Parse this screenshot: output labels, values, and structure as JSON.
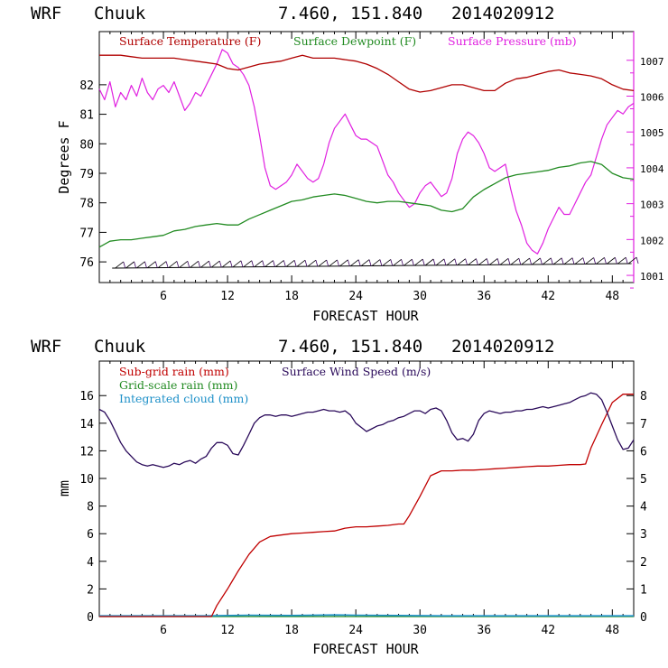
{
  "colors": {
    "temperature": "#b00000",
    "dewpoint": "#228b22",
    "pressure": "#e020e0",
    "subgrid_rain": "#c00000",
    "gridscale_rain": "#228b22",
    "cloud": "#1e90c8",
    "wind": "#2a0a5a",
    "pressure_axis": "#e020e0"
  },
  "chart_data": [
    {
      "type": "line",
      "header": {
        "model": "WRF",
        "station": "Chuuk",
        "coords": "7.460, 151.840",
        "init": "2014020912"
      },
      "xlabel": "FORECAST HOUR",
      "ylabel": "Degrees F",
      "xlim": [
        0,
        50
      ],
      "xticks": [
        "6",
        "12",
        "18",
        "24",
        "30",
        "36",
        "42",
        "48"
      ],
      "ylim": [
        75.3,
        83.8
      ],
      "yticks": [
        "76",
        "77",
        "78",
        "79",
        "80",
        "81",
        "82"
      ],
      "y2lim": [
        1000.8,
        1007.8
      ],
      "y2ticks": [
        "1001",
        "1002",
        "1003",
        "1004",
        "1005",
        "1006",
        "1007"
      ],
      "series": [
        {
          "name": "Surface Temperature (F)",
          "axis": "left",
          "x": [
            0,
            1,
            2,
            3,
            4,
            5,
            6,
            7,
            8,
            9,
            10,
            11,
            12,
            13,
            14,
            15,
            16,
            17,
            18,
            19,
            20,
            21,
            22,
            23,
            24,
            25,
            26,
            27,
            28,
            29,
            30,
            31,
            32,
            33,
            34,
            35,
            36,
            37,
            38,
            39,
            40,
            41,
            42,
            43,
            44,
            45,
            46,
            47,
            48,
            49,
            50
          ],
          "values": [
            83.0,
            83.0,
            83.0,
            82.95,
            82.9,
            82.9,
            82.9,
            82.9,
            82.85,
            82.8,
            82.75,
            82.7,
            82.55,
            82.5,
            82.6,
            82.7,
            82.75,
            82.8,
            82.9,
            83.0,
            82.9,
            82.9,
            82.9,
            82.85,
            82.8,
            82.7,
            82.55,
            82.35,
            82.1,
            81.85,
            81.75,
            81.8,
            81.9,
            82.0,
            82.0,
            81.9,
            81.8,
            81.8,
            82.05,
            82.2,
            82.25,
            82.35,
            82.45,
            82.5,
            82.4,
            82.35,
            82.3,
            82.2,
            82.0,
            81.85,
            81.8
          ]
        },
        {
          "name": "Surface Dewpoint (F)",
          "axis": "left",
          "x": [
            0,
            1,
            2,
            3,
            4,
            5,
            6,
            7,
            8,
            9,
            10,
            11,
            12,
            13,
            14,
            15,
            16,
            17,
            18,
            19,
            20,
            21,
            22,
            23,
            24,
            25,
            26,
            27,
            28,
            29,
            30,
            31,
            32,
            33,
            34,
            35,
            36,
            37,
            38,
            39,
            40,
            41,
            42,
            43,
            44,
            45,
            46,
            47,
            48,
            49,
            50
          ],
          "values": [
            76.5,
            76.7,
            76.75,
            76.75,
            76.8,
            76.85,
            76.9,
            77.05,
            77.1,
            77.2,
            77.25,
            77.3,
            77.25,
            77.25,
            77.45,
            77.6,
            77.75,
            77.9,
            78.05,
            78.1,
            78.2,
            78.25,
            78.3,
            78.25,
            78.15,
            78.05,
            78.0,
            78.05,
            78.05,
            78.0,
            77.95,
            77.9,
            77.75,
            77.7,
            77.8,
            78.2,
            78.45,
            78.65,
            78.85,
            78.95,
            79.0,
            79.05,
            79.1,
            79.2,
            79.25,
            79.35,
            79.4,
            79.3,
            79.0,
            78.85,
            78.8
          ]
        },
        {
          "name": "Surface Pressure (mb)",
          "axis": "right",
          "x": [
            0,
            0.5,
            1,
            1.5,
            2,
            2.5,
            3,
            3.5,
            4,
            4.5,
            5,
            5.5,
            6,
            6.5,
            7,
            7.5,
            8,
            8.5,
            9,
            9.5,
            10,
            10.5,
            11,
            11.5,
            12,
            12.5,
            13,
            13.5,
            14,
            14.5,
            15,
            15.5,
            16,
            16.5,
            17,
            17.5,
            18,
            18.5,
            19,
            19.5,
            20,
            20.5,
            21,
            21.5,
            22,
            22.5,
            23,
            23.5,
            24,
            24.5,
            25,
            25.5,
            26,
            26.5,
            27,
            27.5,
            28,
            28.5,
            29,
            29.5,
            30,
            30.5,
            31,
            31.5,
            32,
            32.5,
            33,
            33.5,
            34,
            34.5,
            35,
            35.5,
            36,
            36.5,
            37,
            37.5,
            38,
            38.5,
            39,
            39.5,
            40,
            40.5,
            41,
            41.5,
            42,
            42.5,
            43,
            43.5,
            44,
            44.5,
            45,
            45.5,
            46,
            46.5,
            47,
            47.5,
            48,
            48.5,
            49,
            49.5,
            50
          ],
          "values": [
            1006.2,
            1005.9,
            1006.4,
            1005.7,
            1006.1,
            1005.9,
            1006.3,
            1006.0,
            1006.5,
            1006.1,
            1005.9,
            1006.2,
            1006.3,
            1006.1,
            1006.4,
            1006.0,
            1005.6,
            1005.8,
            1006.1,
            1006.0,
            1006.3,
            1006.6,
            1006.9,
            1007.3,
            1007.2,
            1006.9,
            1006.8,
            1006.6,
            1006.3,
            1005.7,
            1004.9,
            1004.0,
            1003.5,
            1003.4,
            1003.5,
            1003.6,
            1003.8,
            1004.1,
            1003.9,
            1003.7,
            1003.6,
            1003.7,
            1004.1,
            1004.7,
            1005.1,
            1005.3,
            1005.5,
            1005.2,
            1004.9,
            1004.8,
            1004.8,
            1004.7,
            1004.6,
            1004.2,
            1003.8,
            1003.6,
            1003.3,
            1003.1,
            1002.9,
            1003.0,
            1003.3,
            1003.5,
            1003.6,
            1003.4,
            1003.2,
            1003.3,
            1003.7,
            1004.4,
            1004.8,
            1005.0,
            1004.9,
            1004.7,
            1004.4,
            1004.0,
            1003.9,
            1004.0,
            1004.1,
            1003.4,
            1002.8,
            1002.4,
            1001.9,
            1001.7,
            1001.6,
            1001.9,
            1002.3,
            1002.6,
            1002.9,
            1002.7,
            1002.7,
            1003.0,
            1003.3,
            1003.6,
            1003.8,
            1004.3,
            1004.8,
            1005.2,
            1005.4,
            1005.6,
            1005.5,
            1005.7,
            1005.8
          ]
        }
      ],
      "wind_barbs": "wind barbs along 76 F line"
    },
    {
      "type": "line",
      "header": {
        "model": "WRF",
        "station": "Chuuk",
        "coords": "7.460, 151.840",
        "init": "2014020912"
      },
      "xlabel": "FORECAST HOUR",
      "ylabel": "mm",
      "xlim": [
        0,
        50
      ],
      "xticks": [
        "6",
        "12",
        "18",
        "24",
        "30",
        "36",
        "42",
        "48"
      ],
      "ylim": [
        0,
        18.5
      ],
      "yticks": [
        "0",
        "2",
        "4",
        "6",
        "8",
        "10",
        "12",
        "14",
        "16"
      ],
      "y2lim": [
        0,
        9.25
      ],
      "y2ticks": [
        "0",
        "1",
        "2",
        "3",
        "4",
        "5",
        "6",
        "7",
        "8"
      ],
      "series": [
        {
          "name": "Sub-grid rain (mm)",
          "axis": "left",
          "x": [
            0,
            10.5,
            11,
            12,
            13,
            14,
            15,
            16,
            17,
            18,
            19,
            20,
            21,
            22,
            23,
            24,
            25,
            26,
            27,
            28,
            28.5,
            29,
            30,
            31,
            32,
            33,
            34,
            35,
            36,
            37,
            38,
            39,
            40,
            41,
            42,
            43,
            44,
            45,
            45.5,
            46,
            47,
            48,
            49,
            50
          ],
          "values": [
            0,
            0,
            0.8,
            2.0,
            3.3,
            4.5,
            5.4,
            5.8,
            5.9,
            6.0,
            6.05,
            6.1,
            6.15,
            6.2,
            6.4,
            6.5,
            6.5,
            6.55,
            6.6,
            6.7,
            6.7,
            7.3,
            8.7,
            10.2,
            10.55,
            10.55,
            10.6,
            10.6,
            10.65,
            10.7,
            10.75,
            10.8,
            10.85,
            10.9,
            10.9,
            10.95,
            11.0,
            11.0,
            11.05,
            12.2,
            13.9,
            15.5,
            16.1,
            16.1
          ]
        },
        {
          "name": "Grid-scale rain (mm)",
          "axis": "left",
          "x": [
            0,
            50
          ],
          "values": [
            0,
            0
          ]
        },
        {
          "name": "Integrated cloud (mm)",
          "axis": "left",
          "x": [
            0,
            5,
            10,
            14,
            18,
            22,
            24,
            28,
            32,
            36,
            40,
            44,
            48,
            50
          ],
          "values": [
            0.05,
            0.05,
            0.05,
            0.1,
            0.08,
            0.12,
            0.1,
            0.08,
            0.05,
            0.05,
            0.05,
            0.05,
            0.05,
            0.05
          ]
        },
        {
          "name": "Surface Wind Speed (m/s)",
          "axis": "right",
          "x": [
            0,
            0.5,
            1,
            1.5,
            2,
            2.5,
            3,
            3.5,
            4,
            4.5,
            5,
            5.5,
            6,
            6.5,
            7,
            7.5,
            8,
            8.5,
            9,
            9.5,
            10,
            10.5,
            11,
            11.5,
            12,
            12.5,
            13,
            13.5,
            14,
            14.5,
            15,
            15.5,
            16,
            16.5,
            17,
            17.5,
            18,
            18.5,
            19,
            19.5,
            20,
            20.5,
            21,
            21.5,
            22,
            22.5,
            23,
            23.5,
            24,
            24.5,
            25,
            25.5,
            26,
            26.5,
            27,
            27.5,
            28,
            28.5,
            29,
            29.5,
            30,
            30.5,
            31,
            31.5,
            32,
            32.5,
            33,
            33.5,
            34,
            34.5,
            35,
            35.5,
            36,
            36.5,
            37,
            37.5,
            38,
            38.5,
            39,
            39.5,
            40,
            40.5,
            41,
            41.5,
            42,
            42.5,
            43,
            43.5,
            44,
            44.5,
            45,
            45.5,
            46,
            46.5,
            47,
            47.5,
            48,
            48.5,
            49,
            49.5,
            50
          ],
          "values": [
            7.5,
            7.4,
            7.1,
            6.7,
            6.3,
            6.0,
            5.8,
            5.6,
            5.5,
            5.45,
            5.5,
            5.45,
            5.4,
            5.45,
            5.55,
            5.5,
            5.6,
            5.65,
            5.55,
            5.7,
            5.8,
            6.1,
            6.3,
            6.3,
            6.2,
            5.9,
            5.85,
            6.2,
            6.6,
            7.0,
            7.2,
            7.3,
            7.3,
            7.25,
            7.3,
            7.3,
            7.25,
            7.3,
            7.35,
            7.4,
            7.4,
            7.45,
            7.5,
            7.45,
            7.45,
            7.4,
            7.45,
            7.3,
            7.0,
            6.85,
            6.7,
            6.8,
            6.9,
            6.95,
            7.05,
            7.1,
            7.2,
            7.25,
            7.35,
            7.45,
            7.45,
            7.35,
            7.5,
            7.55,
            7.45,
            7.1,
            6.65,
            6.4,
            6.45,
            6.35,
            6.6,
            7.1,
            7.35,
            7.45,
            7.4,
            7.35,
            7.4,
            7.4,
            7.45,
            7.45,
            7.5,
            7.5,
            7.55,
            7.6,
            7.55,
            7.6,
            7.65,
            7.7,
            7.75,
            7.85,
            7.95,
            8.0,
            8.1,
            8.05,
            7.85,
            7.4,
            6.9,
            6.4,
            6.05,
            6.1,
            6.4
          ]
        }
      ]
    }
  ]
}
